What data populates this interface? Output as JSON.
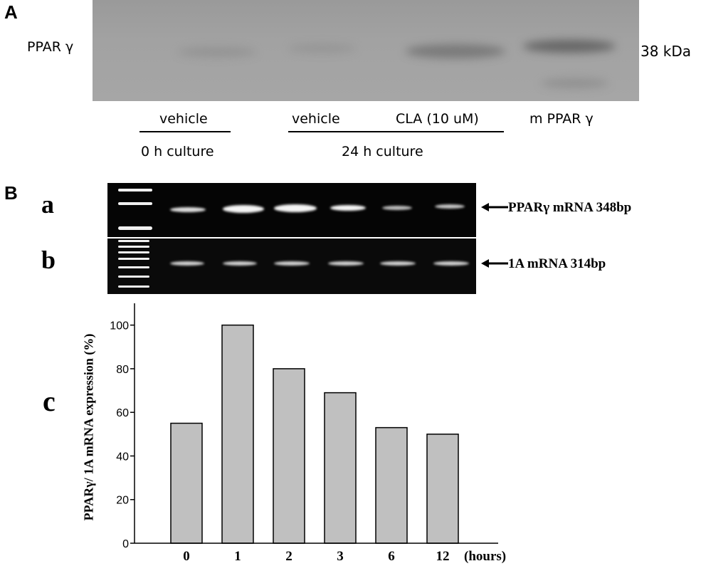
{
  "panel_a": {
    "letter": "A",
    "protein_label": "PPAR γ",
    "size_label": "38 kDa",
    "lane_labels": [
      "vehicle",
      "vehicle",
      "CLA (10 uM)",
      "m PPAR γ"
    ],
    "group_labels": [
      "0 h culture",
      "24 h culture"
    ]
  },
  "panel_b": {
    "letter": "B",
    "sub_a": "a",
    "sub_b": "b",
    "sub_c": "c",
    "band_a_label": "PPARγ mRNA 348bp",
    "band_b_label": "1A  mRNA 314bp"
  },
  "chart_data": {
    "type": "bar",
    "categories": [
      "0",
      "1",
      "2",
      "3",
      "6",
      "12"
    ],
    "values": [
      55,
      100,
      80,
      69,
      53,
      50
    ],
    "ylabel": "PPARγ/ 1A mRNA expression (%)",
    "xunit": "(hours)",
    "ylim": [
      0,
      110
    ],
    "yticks": [
      0,
      20,
      40,
      60,
      80,
      100
    ],
    "bar_color": "#c0c0c0"
  }
}
